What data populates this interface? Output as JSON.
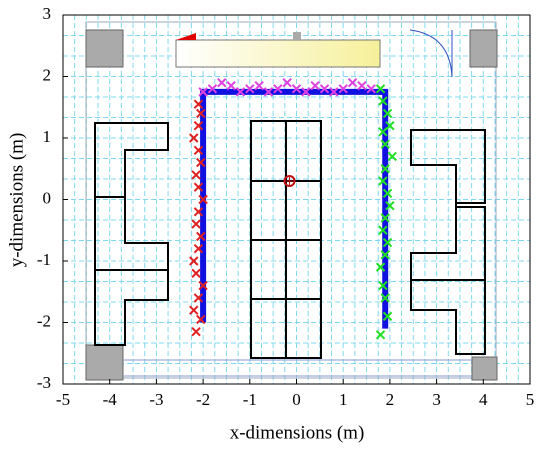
{
  "chart_data": {
    "type": "scatter",
    "x_label": "x-dimensions (m)",
    "y_label": "y-dimensions (m)",
    "xlim": [
      -5,
      5
    ],
    "ylim": [
      -3,
      3
    ],
    "xticks": [
      -5,
      -4,
      -3,
      -2,
      -1,
      0,
      1,
      2,
      3,
      4,
      5
    ],
    "yticks": [
      -3,
      -2,
      -1,
      0,
      1,
      2,
      3
    ],
    "grid": true,
    "series": [
      {
        "color": "#1010e0",
        "marker": "line",
        "x": [
          -2.0,
          -2.0,
          1.9,
          1.9
        ],
        "values": [
          -2.0,
          1.75,
          1.75,
          -2.1
        ]
      },
      {
        "color": "#e02020",
        "marker": "x",
        "x": [
          -2.15,
          -2.05,
          -2.2,
          -2.1,
          -2.0,
          -2.15,
          -2.2,
          -2.1,
          -2.05,
          -2.15,
          -2.1,
          -2.0,
          -2.1,
          -2.15,
          -2.05,
          -2.1,
          -2.2,
          -2.1,
          -2.05,
          -2.1
        ],
        "values": [
          -2.15,
          -1.95,
          -1.8,
          -1.6,
          -1.4,
          -1.2,
          -1.0,
          -0.8,
          -0.6,
          -0.4,
          -0.2,
          0.0,
          0.2,
          0.4,
          0.6,
          0.8,
          1.0,
          1.2,
          1.4,
          1.55
        ]
      },
      {
        "color": "#e040e0",
        "marker": "x",
        "x": [
          -2.0,
          -1.8,
          -1.6,
          -1.4,
          -1.2,
          -1.0,
          -0.8,
          -0.6,
          -0.4,
          -0.2,
          0.0,
          0.2,
          0.4,
          0.6,
          0.8,
          1.0,
          1.2,
          1.4,
          1.6
        ],
        "values": [
          1.75,
          1.8,
          1.9,
          1.85,
          1.75,
          1.8,
          1.85,
          1.75,
          1.8,
          1.9,
          1.8,
          1.75,
          1.85,
          1.8,
          1.75,
          1.8,
          1.9,
          1.85,
          1.8
        ]
      },
      {
        "color": "#20e020",
        "marker": "x",
        "x": [
          1.8,
          1.85,
          1.95,
          2.0,
          1.85,
          1.9,
          2.05,
          1.9,
          1.85,
          1.95,
          2.0,
          1.9,
          1.85,
          1.95,
          1.9,
          1.8,
          1.85,
          1.9,
          1.95,
          1.8
        ],
        "values": [
          1.8,
          1.6,
          1.4,
          1.2,
          1.1,
          0.9,
          0.7,
          0.5,
          0.3,
          0.1,
          -0.1,
          -0.3,
          -0.5,
          -0.7,
          -0.9,
          -1.1,
          -1.4,
          -1.6,
          -1.9,
          -2.2
        ]
      },
      {
        "color": "#c01010",
        "marker": "o",
        "x": [
          -0.15
        ],
        "values": [
          0.3
        ]
      }
    ]
  }
}
